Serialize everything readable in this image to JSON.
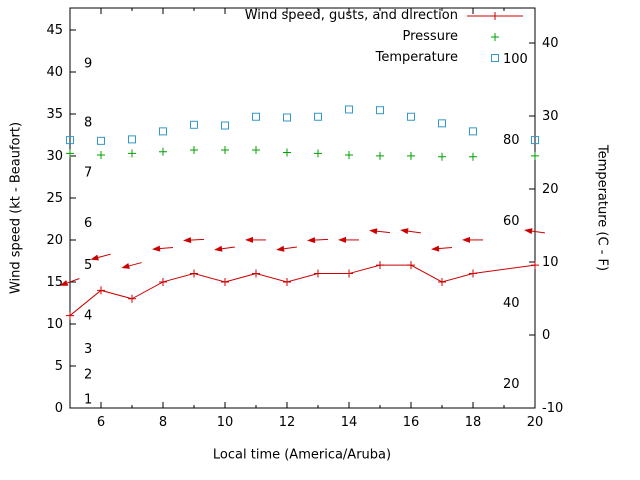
{
  "chart": {
    "background": "#ffffff",
    "legend": {
      "items": [
        {
          "label": "Wind speed, gusts, and direction",
          "color": "#cc0000",
          "marker": "line-plus"
        },
        {
          "label": "Pressure",
          "color": "#00a000",
          "marker": "plus"
        },
        {
          "label": "Temperature",
          "color": "#3399cc",
          "marker": "open-square"
        }
      ]
    },
    "axes": {
      "x": {
        "label": "Local time (America/Aruba)",
        "min": 5,
        "max": 20,
        "major_ticks": [
          6,
          8,
          10,
          12,
          14,
          16,
          18,
          20
        ],
        "minor_ticks": [
          5,
          7,
          9,
          11,
          13,
          15,
          17,
          19
        ]
      },
      "y_left": {
        "label": "Wind speed (kt - Beaufort)",
        "min": 0,
        "max": 47.6,
        "major_ticks": [
          0,
          5,
          10,
          15,
          20,
          25,
          30,
          35,
          40,
          45
        ]
      },
      "y_left_inner_scale": {
        "name": "beaufort",
        "labels": [
          "1",
          "2",
          "3",
          "4",
          "5",
          "6",
          "7",
          "8",
          "9"
        ],
        "positions_kt": [
          1,
          4,
          7,
          11,
          17,
          22,
          28,
          34,
          41
        ]
      },
      "y_right": {
        "label": "Temperature (C - F)",
        "min": -10,
        "max": 44.8,
        "major_ticks": [
          -10,
          0,
          10,
          20,
          30,
          40
        ]
      },
      "y_right_inner_scale": {
        "name": "fahrenheit",
        "labels": [
          "20",
          "40",
          "60",
          "80",
          "100"
        ],
        "positions_c": [
          -6.7,
          4.4,
          15.6,
          26.7,
          37.8
        ]
      }
    }
  },
  "chart_data": {
    "type": "line",
    "title": "",
    "xlabel": "Local time (America/Aruba)",
    "ylabel": "Wind speed (kt - Beaufort)",
    "y2label": "Temperature (C - F)",
    "x_hours": [
      5,
      6,
      7,
      8,
      9,
      10,
      11,
      12,
      13,
      14,
      15,
      16,
      17,
      18,
      19,
      20
    ],
    "xlim": [
      5,
      20
    ],
    "ylim_left_kt": [
      0,
      47.6
    ],
    "ylim_right_c": [
      -10,
      44.8
    ],
    "legend_position": "top-right-inside",
    "grid": false,
    "series": [
      {
        "name": "Wind speed",
        "axis": "left",
        "units": "kt",
        "style": "line-plus",
        "color": "#cc0000",
        "values": [
          11,
          14,
          13,
          15,
          16,
          15,
          16,
          15,
          16,
          16,
          17,
          17,
          15,
          16,
          null,
          17
        ]
      },
      {
        "name": "Wind gusts and direction",
        "axis": "left",
        "units": "kt",
        "style": "direction-arrow",
        "color": "#cc0000",
        "values": [
          15,
          18,
          17,
          19,
          20,
          19,
          20,
          19,
          20,
          20,
          21,
          21,
          19,
          20,
          null,
          21
        ],
        "arrow_tilt_deg": [
          -20,
          -15,
          -15,
          -5,
          -3,
          -8,
          0,
          -8,
          -3,
          0,
          6,
          8,
          -5,
          0,
          null,
          8
        ]
      },
      {
        "name": "Pressure",
        "axis": "left-equivalent",
        "style": "plus",
        "color": "#00a000",
        "values": [
          30.3,
          30.1,
          30.3,
          30.5,
          30.7,
          30.7,
          30.7,
          30.4,
          30.3,
          30.1,
          30.0,
          30.0,
          29.9,
          29.9,
          null,
          30.0
        ]
      },
      {
        "name": "Temperature",
        "axis": "right",
        "units": "C",
        "style": "open-square",
        "color": "#3399cc",
        "values": [
          26.7,
          26.6,
          26.8,
          27.9,
          28.8,
          28.7,
          29.9,
          29.8,
          29.9,
          30.9,
          30.8,
          29.9,
          29.0,
          27.9,
          null,
          26.7
        ]
      }
    ]
  }
}
